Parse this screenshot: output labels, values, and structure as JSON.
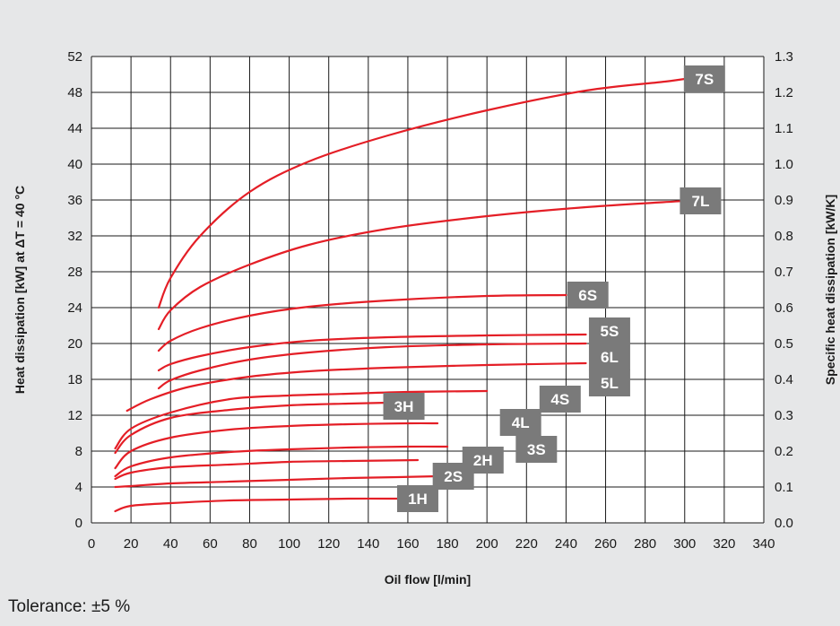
{
  "chart_data": {
    "type": "line",
    "title": "",
    "xlabel": "Oil flow [l/min]",
    "ylabel": "Heat dissipation [kW] at ΔT = 40 °C",
    "y2label": "Specific heat dissipation [kW/K]",
    "xlim": [
      0,
      340
    ],
    "ylim": [
      0,
      52
    ],
    "y2lim": [
      0,
      1.3
    ],
    "x_ticks": [
      "0",
      "20",
      "40",
      "60",
      "80",
      "100",
      "120",
      "140",
      "160",
      "180",
      "200",
      "220",
      "240",
      "260",
      "280",
      "300",
      "320",
      "340"
    ],
    "y_ticks": [
      "0",
      "4",
      "8",
      "12",
      "18",
      "20",
      "24",
      "28",
      "32",
      "36",
      "40",
      "44",
      "48",
      "52"
    ],
    "y2_ticks": [
      "0.0",
      "0.1",
      "0.2",
      "0.3",
      "0.4",
      "0.5",
      "0.6",
      "0.7",
      "0.8",
      "0.9",
      "1.0",
      "1.1",
      "1.2",
      "1.3"
    ],
    "grid": true,
    "line_color": "#e41e26",
    "label_color": "#7a7a7a",
    "series": [
      {
        "name": "1H",
        "x": [
          12,
          20,
          40,
          70,
          100,
          130,
          155
        ],
        "y": [
          1.3,
          1.9,
          2.2,
          2.5,
          2.6,
          2.7,
          2.7
        ],
        "label_at": [
          165,
          2.7
        ]
      },
      {
        "name": "2S",
        "x": [
          12,
          20,
          40,
          70,
          100,
          130,
          155,
          175
        ],
        "y": [
          4.0,
          4.1,
          4.4,
          4.6,
          4.8,
          5.0,
          5.1,
          5.2
        ],
        "label_at": [
          183,
          5.2
        ]
      },
      {
        "name": "2H",
        "x": [
          12,
          20,
          40,
          70,
          100,
          130,
          165
        ],
        "y": [
          4.9,
          5.6,
          6.2,
          6.5,
          6.8,
          6.9,
          7.0
        ],
        "label_at": [
          198,
          7.0
        ]
      },
      {
        "name": "3S",
        "x": [
          12,
          20,
          40,
          70,
          100,
          130,
          160,
          180
        ],
        "y": [
          5.2,
          6.3,
          7.3,
          7.9,
          8.2,
          8.4,
          8.5,
          8.5
        ],
        "label_at": [
          225,
          8.2
        ]
      },
      {
        "name": "4L",
        "x": [
          12,
          20,
          40,
          70,
          100,
          130,
          160,
          175
        ],
        "y": [
          6.1,
          8.0,
          9.5,
          10.4,
          10.8,
          11.0,
          11.1,
          11.1
        ],
        "label_at": [
          217,
          11.2
        ]
      },
      {
        "name": "3H",
        "x": [
          12,
          20,
          40,
          70,
          100,
          130,
          150
        ],
        "y": [
          7.8,
          9.8,
          11.7,
          12.6,
          13.1,
          13.3,
          13.4
        ],
        "label_at": [
          158,
          13.0
        ]
      },
      {
        "name": "4S",
        "x": [
          12,
          20,
          40,
          70,
          100,
          130,
          160,
          200
        ],
        "y": [
          8.3,
          10.5,
          12.3,
          13.8,
          14.2,
          14.4,
          14.6,
          14.7
        ],
        "label_at": [
          237,
          13.8
        ]
      },
      {
        "name": "5L",
        "x": [
          18,
          30,
          50,
          80,
          110,
          150,
          200,
          250
        ],
        "y": [
          12.5,
          13.8,
          15.2,
          16.3,
          16.9,
          17.3,
          17.6,
          17.8
        ],
        "label_at": [
          262,
          15.6
        ]
      },
      {
        "name": "6L",
        "x": [
          34,
          40,
          55,
          80,
          110,
          150,
          200,
          250
        ],
        "y": [
          15.0,
          15.9,
          17.0,
          18.2,
          19.0,
          19.6,
          19.9,
          20.0
        ],
        "label_at": [
          262,
          18.5
        ]
      },
      {
        "name": "5S",
        "x": [
          34,
          40,
          55,
          80,
          110,
          150,
          200,
          250
        ],
        "y": [
          17.0,
          17.7,
          18.6,
          19.6,
          20.3,
          20.7,
          20.9,
          21.0
        ],
        "label_at": [
          262,
          21.4
        ]
      },
      {
        "name": "6S",
        "x": [
          34,
          40,
          55,
          80,
          110,
          150,
          200,
          240
        ],
        "y": [
          19.2,
          20.3,
          21.7,
          23.1,
          24.1,
          24.8,
          25.3,
          25.4
        ],
        "label_at": [
          251,
          25.4
        ]
      },
      {
        "name": "7L",
        "x": [
          34,
          40,
          55,
          80,
          110,
          150,
          200,
          250,
          300
        ],
        "y": [
          21.6,
          23.7,
          26.3,
          28.8,
          31.0,
          32.8,
          34.2,
          35.2,
          35.9
        ],
        "label_at": [
          308,
          35.9
        ]
      },
      {
        "name": "7S",
        "x": [
          34,
          40,
          55,
          80,
          110,
          150,
          200,
          250,
          290,
          300
        ],
        "y": [
          24.0,
          27.3,
          32.0,
          36.9,
          40.3,
          43.2,
          46.0,
          48.2,
          49.2,
          49.5
        ],
        "label_at": [
          310,
          49.5
        ]
      }
    ]
  },
  "footer": {
    "tolerance": "Tolerance: ±5 %"
  }
}
